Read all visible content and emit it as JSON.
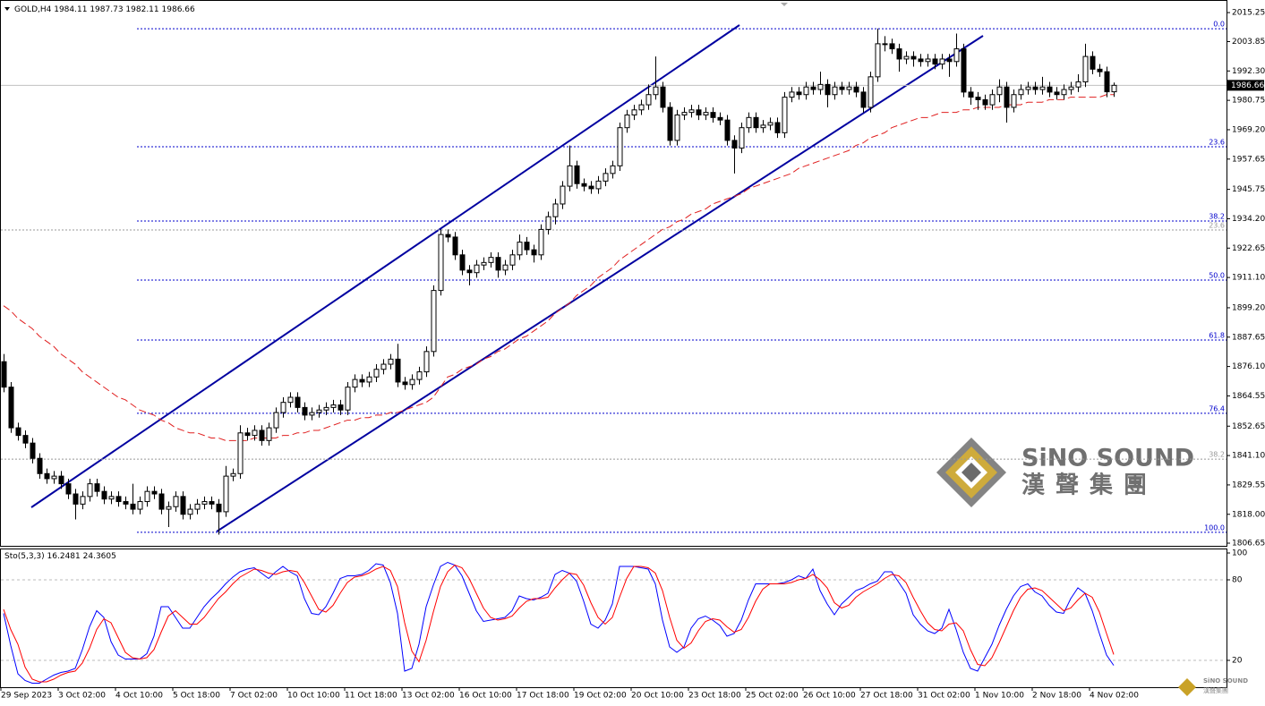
{
  "chart_data": {
    "type": "candlestick",
    "symbol": "GOLD,H4",
    "categories": [
      "29 Sep 2023",
      null,
      null,
      null,
      null,
      null,
      null,
      null,
      "3 Oct 02:00",
      null,
      null,
      null,
      null,
      null,
      null,
      null,
      "4 Oct 10:00",
      null,
      null,
      null,
      null,
      null,
      null,
      null,
      "5 Oct 18:00",
      null,
      null,
      null,
      null,
      null,
      null,
      null,
      "7 Oct 02:00",
      null,
      null,
      null,
      null,
      null,
      null,
      null,
      "10 Oct 10:00",
      null,
      null,
      null,
      null,
      null,
      null,
      null,
      "11 Oct 18:00",
      null,
      null,
      null,
      null,
      null,
      null,
      null,
      "13 Oct 02:00",
      null,
      null,
      null,
      null,
      null,
      null,
      null,
      "16 Oct 10:00",
      null,
      null,
      null,
      null,
      null,
      null,
      null,
      "17 Oct 18:00",
      null,
      null,
      null,
      null,
      null,
      null,
      null,
      "19 Oct 02:00",
      null,
      null,
      null,
      null,
      null,
      null,
      null,
      "20 Oct 10:00",
      null,
      null,
      null,
      null,
      null,
      null,
      null,
      "23 Oct 18:00",
      null,
      null,
      null,
      null,
      null,
      null,
      null,
      "25 Oct 02:00",
      null,
      null,
      null,
      null,
      null,
      null,
      null,
      "26 Oct 10:00",
      null,
      null,
      null,
      null,
      null,
      null,
      null,
      "27 Oct 18:00",
      null,
      null,
      null,
      null,
      null,
      null,
      null,
      "31 Oct 02:00",
      null,
      null,
      null,
      null,
      null,
      null,
      null,
      "1 Nov 10:00",
      null,
      null,
      null,
      null,
      null,
      null,
      null,
      "2 Nov 18:00",
      null,
      null,
      null,
      null,
      null,
      null,
      null,
      "4 Nov 02:00",
      null,
      null,
      null
    ],
    "open": [
      1878,
      1868,
      1852,
      1849,
      1846,
      1840,
      1834,
      1832,
      1833,
      1830,
      1826,
      1822,
      1825,
      1830,
      1827,
      1824,
      1825,
      1823,
      1822,
      1820,
      1823,
      1827,
      1826,
      1820,
      1821,
      1825,
      1818,
      1820,
      1822,
      1823,
      1822,
      1819,
      1833,
      1834,
      1850,
      1849,
      1851,
      1847,
      1852,
      1858,
      1862,
      1864,
      1860,
      1857,
      1858,
      1859,
      1860,
      1861,
      1859,
      1868,
      1871,
      1870,
      1872,
      1875,
      1877,
      1879,
      1870,
      1869,
      1871,
      1874,
      1882,
      1906,
      1928,
      1927,
      1920,
      1914,
      1913,
      1916,
      1917,
      1919,
      1914,
      1916,
      1920,
      1925,
      1922,
      1920,
      1930,
      1935,
      1940,
      1947,
      1955,
      1948,
      1947,
      1946,
      1949,
      1952,
      1955,
      1970,
      1975,
      1977,
      1979,
      1983,
      1986,
      1978,
      1965,
      1975,
      1976,
      1977,
      1975,
      1976,
      1974,
      1973,
      1965,
      1962,
      1970,
      1974,
      1970,
      1971,
      1972,
      1968,
      1982,
      1984,
      1983,
      1986,
      1985,
      1987,
      1983,
      1986,
      1985,
      1986,
      1984,
      1978,
      1990,
      2003,
      2003,
      2001,
      1997,
      1998,
      1997,
      1996,
      1997,
      1995,
      1997,
      1996,
      2001,
      1984,
      1982,
      1981,
      1979,
      1983,
      1986,
      1978,
      1983,
      1985,
      1986,
      1985,
      1986,
      1984,
      1983,
      1985,
      1986,
      1988,
      1998,
      1993,
      1992,
      1984.11
    ],
    "high": [
      1881,
      1870,
      1854,
      1851,
      1848,
      1842,
      1836,
      1835,
      1835,
      1832,
      1828,
      1827,
      1832,
      1832,
      1829,
      1827,
      1827,
      1825,
      1830,
      1825,
      1829,
      1829,
      1828,
      1823,
      1827,
      1827,
      1822,
      1824,
      1825,
      1825,
      1824,
      1837,
      1836,
      1853,
      1852,
      1853,
      1853,
      1854,
      1860,
      1864,
      1866,
      1866,
      1862,
      1860,
      1861,
      1862,
      1863,
      1863,
      1870,
      1873,
      1873,
      1874,
      1877,
      1879,
      1881,
      1885,
      1872,
      1873,
      1876,
      1884,
      1908,
      1930,
      1930,
      1929,
      1922,
      1916,
      1918,
      1919,
      1921,
      1921,
      1918,
      1922,
      1928,
      1927,
      1924,
      1932,
      1937,
      1942,
      1949,
      1963,
      1957,
      1950,
      1949,
      1951,
      1954,
      1957,
      1972,
      1977,
      1979,
      1981,
      1987,
      1998,
      1988,
      1980,
      1977,
      1978,
      1979,
      1979,
      1978,
      1978,
      1976,
      1975,
      1967,
      1972,
      1976,
      1976,
      1973,
      1974,
      1974,
      1984,
      1986,
      1986,
      1988,
      1988,
      1992,
      1989,
      1988,
      1988,
      1988,
      1988,
      1986,
      1992,
      2009,
      2006,
      2005,
      2003,
      2000,
      2000,
      1999,
      1999,
      1999,
      1999,
      1999,
      2007,
      2003,
      1986,
      1984,
      1983,
      1985,
      1989,
      1988,
      1985,
      1987,
      1988,
      1988,
      1990,
      1988,
      1986,
      1987,
      1988,
      1991,
      2003,
      2000,
      1995,
      1994,
      1987.73
    ],
    "low": [
      1866,
      1850,
      1847,
      1844,
      1838,
      1832,
      1830,
      1830,
      1828,
      1824,
      1816,
      1820,
      1823,
      1825,
      1822,
      1822,
      1821,
      1820,
      1818,
      1818,
      1821,
      1824,
      1818,
      1813,
      1819,
      1816,
      1816,
      1818,
      1820,
      1820,
      1810,
      1817,
      1831,
      1832,
      1847,
      1847,
      1845,
      1845,
      1850,
      1856,
      1860,
      1858,
      1855,
      1855,
      1856,
      1857,
      1858,
      1857,
      1857,
      1866,
      1868,
      1868,
      1870,
      1873,
      1875,
      1868,
      1867,
      1867,
      1869,
      1872,
      1880,
      1904,
      1925,
      1918,
      1912,
      1908,
      1911,
      1914,
      1915,
      1911,
      1912,
      1914,
      1918,
      1920,
      1917,
      1918,
      1928,
      1932,
      1938,
      1945,
      1946,
      1945,
      1944,
      1944,
      1947,
      1950,
      1953,
      1968,
      1973,
      1975,
      1977,
      1981,
      1976,
      1963,
      1963,
      1973,
      1974,
      1973,
      1973,
      1972,
      1971,
      1963,
      1952,
      1960,
      1968,
      1968,
      1968,
      1969,
      1966,
      1966,
      1980,
      1981,
      1981,
      1983,
      1983,
      1978,
      1981,
      1983,
      1983,
      1982,
      1976,
      1976,
      1988,
      2000,
      1999,
      1992,
      1995,
      1994,
      1994,
      1994,
      1993,
      1993,
      1990,
      1994,
      1982,
      1979,
      1977,
      1977,
      1977,
      1980,
      1972,
      1976,
      1981,
      1983,
      1983,
      1983,
      1982,
      1981,
      1981,
      1983,
      1984,
      1986,
      1991,
      1990,
      1982,
      1982.11
    ],
    "close": [
      1868,
      1852,
      1849,
      1846,
      1840,
      1834,
      1832,
      1833,
      1830,
      1826,
      1822,
      1825,
      1830,
      1827,
      1824,
      1825,
      1823,
      1822,
      1820,
      1823,
      1827,
      1826,
      1820,
      1821,
      1825,
      1818,
      1820,
      1822,
      1823,
      1822,
      1819,
      1833,
      1834,
      1850,
      1849,
      1851,
      1847,
      1852,
      1858,
      1862,
      1864,
      1860,
      1857,
      1858,
      1859,
      1860,
      1861,
      1859,
      1868,
      1871,
      1870,
      1872,
      1875,
      1877,
      1879,
      1870,
      1869,
      1871,
      1874,
      1882,
      1906,
      1928,
      1927,
      1920,
      1914,
      1913,
      1916,
      1917,
      1919,
      1914,
      1916,
      1920,
      1925,
      1922,
      1920,
      1930,
      1935,
      1940,
      1947,
      1955,
      1948,
      1947,
      1946,
      1949,
      1952,
      1955,
      1970,
      1975,
      1977,
      1979,
      1983,
      1986,
      1978,
      1965,
      1975,
      1976,
      1977,
      1975,
      1976,
      1974,
      1973,
      1965,
      1962,
      1970,
      1974,
      1970,
      1971,
      1972,
      1968,
      1982,
      1984,
      1983,
      1986,
      1985,
      1987,
      1983,
      1986,
      1985,
      1986,
      1984,
      1978,
      1990,
      2003,
      2003,
      2001,
      1997,
      1998,
      1997,
      1996,
      1997,
      1995,
      1997,
      1996,
      2001,
      1984,
      1982,
      1981,
      1979,
      1983,
      1986,
      1978,
      1983,
      1985,
      1986,
      1985,
      1986,
      1984,
      1983,
      1985,
      1986,
      1988,
      1998,
      1993,
      1992,
      1984.11,
      1986.66
    ],
    "up_color": "#ffffff",
    "down_color": "#000000",
    "ma": {
      "color": "#e02020",
      "values": [
        1900,
        1898,
        1895,
        1893,
        1891,
        1888,
        1886,
        1884,
        1881,
        1879,
        1877,
        1874,
        1872,
        1870,
        1868,
        1866,
        1864,
        1863,
        1861,
        1859,
        1858,
        1857,
        1855,
        1854,
        1852,
        1851,
        1850,
        1850,
        1849,
        1848,
        1848,
        1847,
        1847,
        1847,
        1847,
        1848,
        1848,
        1848,
        1848,
        1849,
        1849,
        1850,
        1850,
        1851,
        1851,
        1852,
        1853,
        1854,
        1855,
        1855,
        1856,
        1856,
        1857,
        1857,
        1858,
        1858,
        1859,
        1860,
        1861,
        1862,
        1864,
        1868,
        1872,
        1873,
        1875,
        1876,
        1877,
        1879,
        1880,
        1882,
        1883,
        1885,
        1887,
        1888,
        1890,
        1892,
        1894,
        1897,
        1899,
        1901,
        1904,
        1906,
        1908,
        1911,
        1913,
        1915,
        1918,
        1920,
        1922,
        1924,
        1926,
        1928,
        1930,
        1931,
        1933,
        1934,
        1936,
        1937,
        1938,
        1940,
        1941,
        1942,
        1943,
        1944,
        1946,
        1947,
        1948,
        1949,
        1950,
        1951,
        1952,
        1954,
        1955,
        1956,
        1957,
        1958,
        1959,
        1960,
        1961,
        1963,
        1964,
        1966,
        1967,
        1968,
        1970,
        1971,
        1972,
        1973,
        1974,
        1974,
        1975,
        1976,
        1976,
        1976,
        1977,
        1977,
        1978,
        1978,
        1978,
        1978,
        1979,
        1979,
        1979,
        1980,
        1980,
        1980,
        1981,
        1981,
        1981,
        1982,
        1982,
        1982,
        1982,
        1982,
        1983,
        1983
      ]
    },
    "ylim": [
      1805.6,
      2020.2
    ],
    "yticks": [
      2015.25,
      2003.85,
      {
        "value": 1992.3,
        "label": "1992.30"
      },
      1980.75,
      {
        "value": 1969.2,
        "label": "1969.20"
      },
      1957.65,
      1945.75,
      {
        "value": 1934.2,
        "label": "1934.20"
      },
      1922.65,
      {
        "value": 1911.1,
        "label": "1911.10"
      },
      {
        "value": 1899.2,
        "label": "1899.20"
      },
      1887.65,
      {
        "value": 1876.1,
        "label": "1876.10"
      },
      1864.55,
      1852.65,
      {
        "value": 1841.1,
        "label": "1841.10"
      },
      1829.55,
      {
        "value": 1818,
        "label": "1818.00"
      },
      1806.65
    ],
    "fib_levels": [
      {
        "value": 2008.9,
        "label": "0.0"
      },
      {
        "value": 1962.5,
        "label": "23.6"
      },
      {
        "value": 1933.3,
        "label": "38.2"
      },
      {
        "value": 1910.1,
        "label": "50.0"
      },
      {
        "value": 1886.5,
        "label": "61.8"
      },
      {
        "value": 1857.7,
        "label": "76.4"
      },
      {
        "value": 1810.9,
        "label": "100.0"
      }
    ],
    "fib_color": "#0000cc",
    "fib_old_levels": [
      {
        "value": 1929.8,
        "label": "23.6"
      },
      {
        "value": 1839.7,
        "label": "38.2"
      }
    ],
    "fib_old_color": "#999999",
    "indicator": {
      "type": "line",
      "name": "Sto(5,3,3)",
      "ylim": [
        0,
        100
      ],
      "yticks": [
        100,
        80,
        20
      ],
      "series": [
        {
          "color": "#0000ff",
          "values": [
            55,
            31,
            10,
            5,
            3,
            3,
            6,
            9,
            11,
            12,
            14,
            28,
            45,
            57,
            52,
            34,
            24,
            21,
            21,
            21,
            25,
            38,
            60,
            60,
            52,
            44,
            44,
            52,
            60,
            66,
            71,
            77,
            82,
            86,
            88,
            89,
            85,
            81,
            86,
            90,
            86,
            83,
            66,
            55,
            54,
            60,
            70,
            81,
            83,
            83,
            84,
            87,
            92,
            91,
            78,
            55,
            12,
            14,
            32,
            60,
            76,
            90,
            93,
            91,
            83,
            70,
            57,
            49,
            50,
            51,
            52,
            57,
            68,
            66,
            65,
            67,
            70,
            84,
            87,
            85,
            79,
            64,
            47,
            44,
            50,
            62,
            90,
            90,
            90,
            89,
            88,
            77,
            50,
            30,
            26,
            30,
            44,
            51,
            53,
            50,
            46,
            38,
            40,
            50,
            65,
            77,
            77,
            77,
            77,
            78,
            80,
            83,
            81,
            88,
            72,
            62,
            54,
            62,
            67,
            72,
            74,
            77,
            79,
            86,
            86,
            78,
            70,
            54,
            47,
            42,
            40,
            44,
            58,
            43,
            26,
            14,
            12,
            22,
            32,
            46,
            58,
            68,
            75,
            77,
            71,
            68,
            61,
            56,
            55,
            66,
            74,
            70,
            57,
            40,
            24,
            16.2481
          ]
        },
        {
          "color": "#ff0000",
          "values": [
            58,
            43,
            32,
            15,
            6,
            4,
            4,
            6,
            9,
            11,
            12,
            18,
            29,
            43,
            51,
            48,
            37,
            26,
            22,
            21,
            22,
            28,
            41,
            53,
            57,
            52,
            47,
            47,
            52,
            59,
            66,
            71,
            77,
            82,
            85,
            88,
            87,
            85,
            84,
            86,
            87,
            86,
            78,
            68,
            58,
            56,
            61,
            70,
            78,
            82,
            83,
            85,
            88,
            90,
            87,
            75,
            48,
            27,
            19,
            35,
            56,
            75,
            86,
            91,
            89,
            81,
            70,
            59,
            52,
            50,
            51,
            53,
            59,
            64,
            66,
            66,
            67,
            74,
            80,
            85,
            84,
            76,
            63,
            52,
            47,
            52,
            67,
            81,
            90,
            90,
            89,
            85,
            72,
            52,
            35,
            29,
            33,
            42,
            49,
            51,
            50,
            45,
            41,
            43,
            52,
            64,
            73,
            77,
            77,
            77,
            78,
            80,
            81,
            84,
            80,
            74,
            63,
            59,
            61,
            67,
            71,
            74,
            77,
            81,
            84,
            83,
            78,
            67,
            57,
            48,
            43,
            42,
            47,
            48,
            42,
            28,
            17,
            16,
            22,
            33,
            45,
            57,
            67,
            73,
            74,
            72,
            67,
            62,
            57,
            59,
            65,
            70,
            67,
            56,
            40,
            24.3605
          ]
        }
      ]
    },
    "watermark": {
      "name": "SiNO SOUND",
      "chinese": "漢聲集團"
    }
  }
}
